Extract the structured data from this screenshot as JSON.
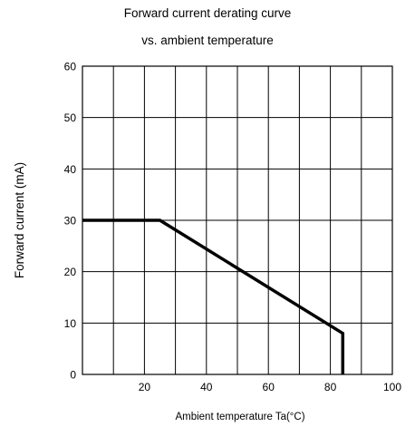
{
  "chart_data": {
    "type": "line",
    "title": "Forward current derating curve",
    "subtitle": "vs. ambient temperature",
    "xlabel": "Ambient temperature Ta(°C)",
    "ylabel": "Forward current (mA)",
    "xlim": [
      0,
      100
    ],
    "ylim": [
      0,
      60
    ],
    "x_ticks": [
      20,
      40,
      60,
      80,
      100
    ],
    "y_ticks": [
      0,
      10,
      20,
      30,
      40,
      50,
      60
    ],
    "grid": true,
    "legend": "none",
    "series": [
      {
        "x": [
          0,
          25,
          84,
          84
        ],
        "y": [
          30,
          30,
          8,
          0
        ]
      }
    ]
  }
}
